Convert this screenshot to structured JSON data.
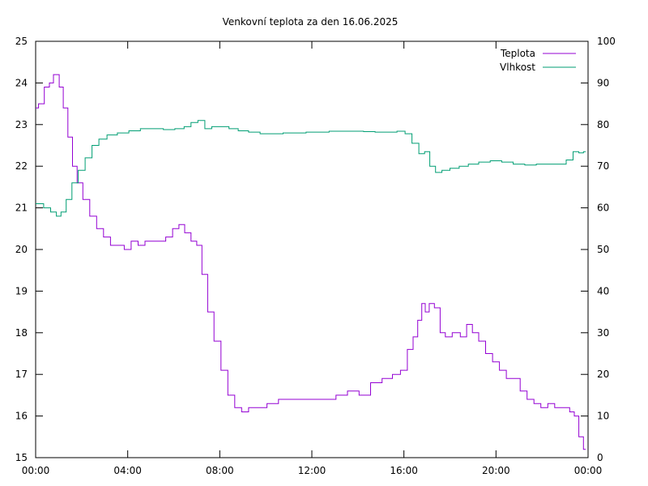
{
  "chart_data": {
    "type": "line",
    "title": "Venkovní teplota za den 16.06.2025",
    "xlabel": "",
    "ylabel": "",
    "y2label": "",
    "x_ticks": [
      "00:00",
      "04:00",
      "08:00",
      "12:00",
      "16:00",
      "20:00",
      "00:00"
    ],
    "x_range_hours": [
      0,
      24
    ],
    "y_left_range": [
      15,
      25
    ],
    "y_left_ticks": [
      "15",
      "16",
      "17",
      "18",
      "19",
      "20",
      "21",
      "22",
      "23",
      "24",
      "25"
    ],
    "y_right_range": [
      0,
      100
    ],
    "y_right_ticks": [
      "0",
      "10",
      "20",
      "30",
      "40",
      "50",
      "60",
      "70",
      "80",
      "90",
      "100"
    ],
    "grid": false,
    "legend_position": "top-right",
    "colors": {
      "Teplota": "#9400d3",
      "Vlhkost": "#009e73"
    },
    "series": [
      {
        "name": "Teplota",
        "axis": "left",
        "x_hours": [
          0,
          0.25,
          0.5,
          0.7,
          0.85,
          0.95,
          1.1,
          1.3,
          1.5,
          1.7,
          1.9,
          2.2,
          2.5,
          2.8,
          3.1,
          3.4,
          3.7,
          4.0,
          4.3,
          4.6,
          4.9,
          5.2,
          5.5,
          5.8,
          6.1,
          6.35,
          6.6,
          6.9,
          7.1,
          7.35,
          7.6,
          7.9,
          8.2,
          8.5,
          8.8,
          9.1,
          9.4,
          9.8,
          10.3,
          10.8,
          11.3,
          11.8,
          12.3,
          12.8,
          13.3,
          13.8,
          14.3,
          14.8,
          15.3,
          15.7,
          16.0,
          16.3,
          16.5,
          16.7,
          16.85,
          17.0,
          17.2,
          17.45,
          17.7,
          17.9,
          18.3,
          18.6,
          18.85,
          19.1,
          19.4,
          19.7,
          20.0,
          20.3,
          20.6,
          20.9,
          21.2,
          21.5,
          21.8,
          22.1,
          22.4,
          22.7,
          22.9,
          23.1,
          23.3,
          23.5,
          23.7,
          23.9
        ],
        "values": [
          23.4,
          23.5,
          23.9,
          24.0,
          24.2,
          24.2,
          23.9,
          23.4,
          22.7,
          22.0,
          21.6,
          21.2,
          20.8,
          20.5,
          20.3,
          20.1,
          20.1,
          20.0,
          20.2,
          20.1,
          20.2,
          20.2,
          20.2,
          20.3,
          20.5,
          20.6,
          20.4,
          20.2,
          20.1,
          19.4,
          18.5,
          17.8,
          17.1,
          16.5,
          16.2,
          16.1,
          16.2,
          16.2,
          16.3,
          16.4,
          16.4,
          16.4,
          16.4,
          16.4,
          16.5,
          16.6,
          16.5,
          16.8,
          16.9,
          17.0,
          17.1,
          17.6,
          17.9,
          18.3,
          18.7,
          18.5,
          18.7,
          18.6,
          18.0,
          17.9,
          18.0,
          17.9,
          18.2,
          18.0,
          17.8,
          17.5,
          17.3,
          17.1,
          16.9,
          16.9,
          16.6,
          16.4,
          16.3,
          16.2,
          16.3,
          16.2,
          16.2,
          16.2,
          16.1,
          16.0,
          15.5,
          15.2
        ]
      },
      {
        "name": "Vlhkost",
        "axis": "right",
        "x_hours": [
          0,
          0.2,
          0.5,
          0.8,
          1.0,
          1.2,
          1.45,
          1.7,
          2.0,
          2.3,
          2.6,
          2.9,
          3.3,
          3.8,
          4.3,
          4.8,
          5.3,
          5.8,
          6.3,
          6.6,
          6.9,
          7.2,
          7.5,
          7.8,
          8.2,
          8.6,
          9.0,
          9.5,
          10.0,
          10.5,
          11.0,
          11.5,
          12.0,
          12.5,
          13.0,
          13.5,
          14.0,
          14.5,
          15.0,
          15.5,
          15.9,
          16.2,
          16.5,
          16.8,
          17.0,
          17.25,
          17.5,
          17.8,
          18.2,
          18.6,
          19.0,
          19.5,
          20.0,
          20.5,
          21.0,
          21.5,
          22.0,
          22.5,
          22.9,
          23.2,
          23.5,
          23.7,
          23.9
        ],
        "values": [
          61,
          61,
          60,
          59,
          58,
          59,
          62,
          66,
          69,
          72,
          75,
          76.5,
          77.5,
          78,
          78.5,
          79,
          79,
          78.8,
          79,
          79.5,
          80.5,
          81,
          79,
          79.5,
          79.5,
          79,
          78.5,
          78.2,
          77.8,
          77.8,
          78,
          78,
          78.2,
          78.2,
          78.4,
          78.4,
          78.4,
          78.3,
          78.2,
          78.2,
          78.4,
          77.8,
          75.5,
          73,
          73.5,
          70,
          68.5,
          69,
          69.5,
          70,
          70.5,
          71,
          71.3,
          71,
          70.5,
          70.3,
          70.5,
          70.5,
          70.5,
          71.5,
          73.5,
          73.2,
          73.5
        ]
      }
    ]
  }
}
